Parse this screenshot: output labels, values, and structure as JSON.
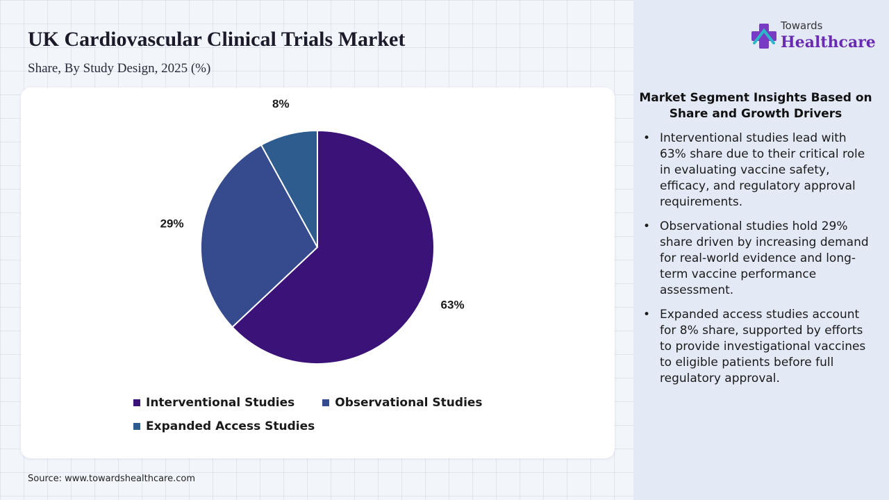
{
  "title": "UK Cardiovascular Clinical Trials Market",
  "subtitle": "Share, By Study Design, 2025 (%)",
  "logo": {
    "top": "Towards",
    "main": "Healthcare"
  },
  "source": "Source: www.towardshealthcare.com",
  "chart_data": {
    "type": "pie",
    "categories": [
      "Interventional Studies",
      "Observational Studies",
      "Expanded Access Studies"
    ],
    "values": [
      63,
      29,
      8
    ],
    "labels": [
      "63%",
      "29%",
      "8%"
    ],
    "colors": [
      "#3a1278",
      "#364a8e",
      "#2e5c8e"
    ],
    "unit": "%",
    "legend_position": "bottom"
  },
  "insights": {
    "title": "Market Segment Insights Based on Share and Growth Drivers",
    "items": [
      "Interventional studies lead with 63% share due to their critical role in evaluating vaccine safety, efficacy, and regulatory approval requirements.",
      "Observational studies hold 29% share driven by increasing demand for real-world evidence and long-term vaccine performance assessment.",
      "Expanded access studies account for 8% share, supported by efforts to provide investigational vaccines to eligible patients before full regulatory approval."
    ]
  }
}
